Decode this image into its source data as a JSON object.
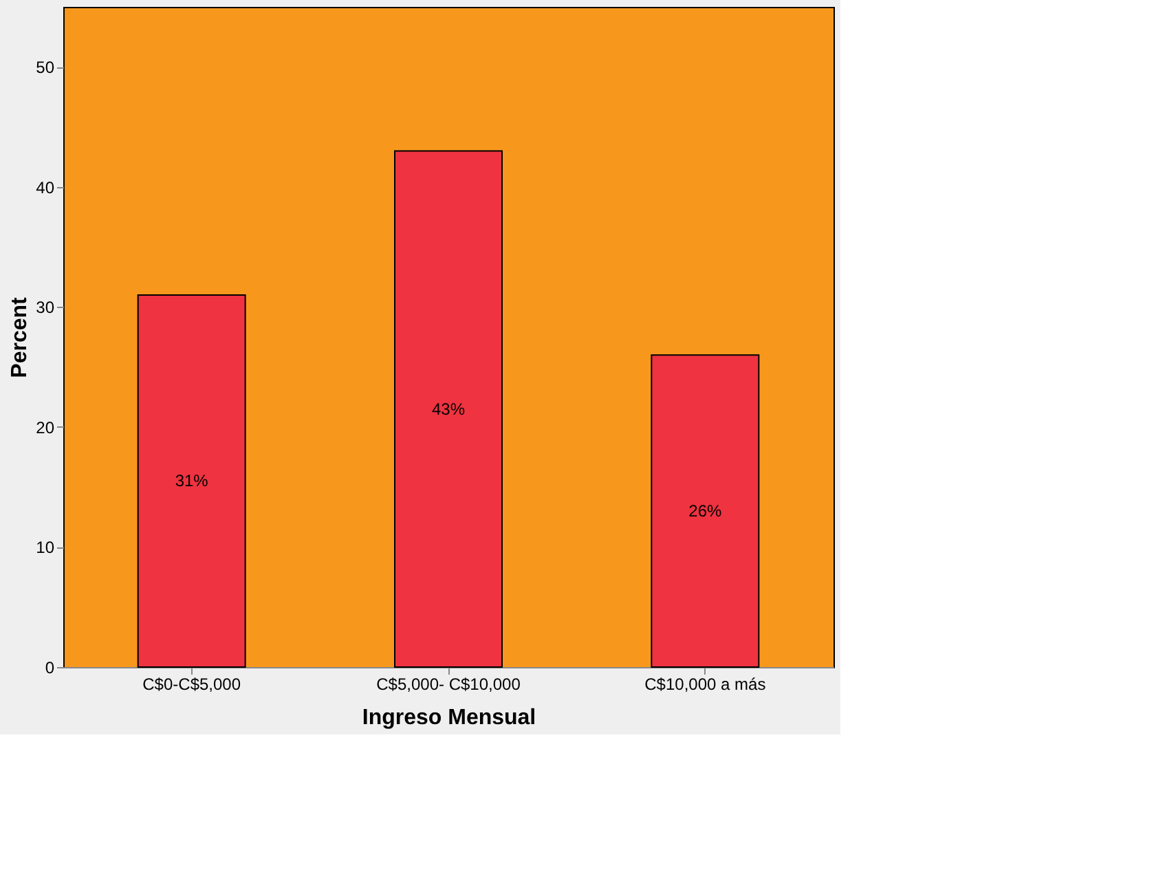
{
  "chart_data": {
    "type": "bar",
    "xlabel": "Ingreso Mensual",
    "ylabel": "Percent",
    "categories": [
      "C$0-C$5,000",
      "C$5,000- C$10,000",
      "C$10,000 a más"
    ],
    "values": [
      31,
      43,
      26
    ],
    "value_labels": [
      "31%",
      "43%",
      "26%"
    ],
    "color": "#ef3340",
    "ylim": [
      0,
      55
    ],
    "yticks": [
      0,
      10,
      20,
      30,
      40,
      50
    ],
    "grid": false
  }
}
